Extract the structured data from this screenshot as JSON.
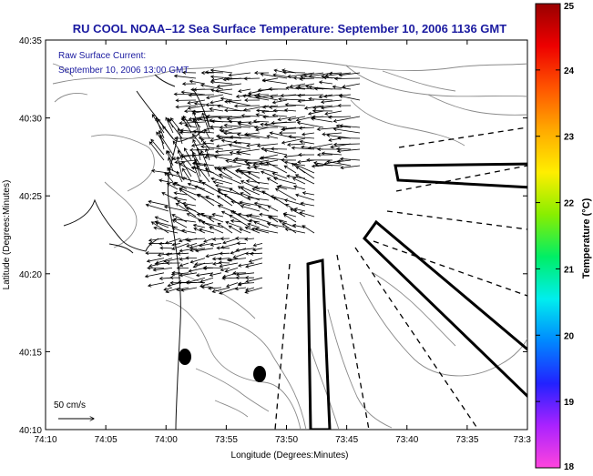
{
  "title": "RU COOL  NOAA–12  Sea Surface Temperature:  September 10, 2006 1136 GMT",
  "annotation": {
    "line1": "Raw Surface Current:",
    "line2": "September 10, 2006 13:00 GMT"
  },
  "scale_label": "50 cm/s",
  "axes": {
    "xlabel": "Longitude (Degrees:Minutes)",
    "ylabel": "Latitude (Degrees:Minutes)",
    "x_ticks": [
      "74:10",
      "74:05",
      "74:00",
      "73:55",
      "73:50",
      "73:45",
      "73:40",
      "73:35",
      "73:3"
    ],
    "y_ticks": [
      "40:35",
      "40:30",
      "40:25",
      "40:20",
      "40:15",
      "40:10"
    ]
  },
  "colorbar": {
    "label": "Temperature (°C)",
    "ticks": [
      "25",
      "24",
      "23",
      "22",
      "21",
      "20",
      "19",
      "18"
    ],
    "min": 18,
    "max": 25,
    "gradient": [
      "#ff44dd",
      "#aa22ff",
      "#2222ff",
      "#0088ff",
      "#00eeee",
      "#00ee66",
      "#88ee00",
      "#ffee00",
      "#ffaa00",
      "#ff5500",
      "#ee0000",
      "#990000"
    ]
  },
  "colors": {
    "ink": "#000000",
    "title": "#1a1aa0",
    "contour": "#8a8a8a"
  }
}
